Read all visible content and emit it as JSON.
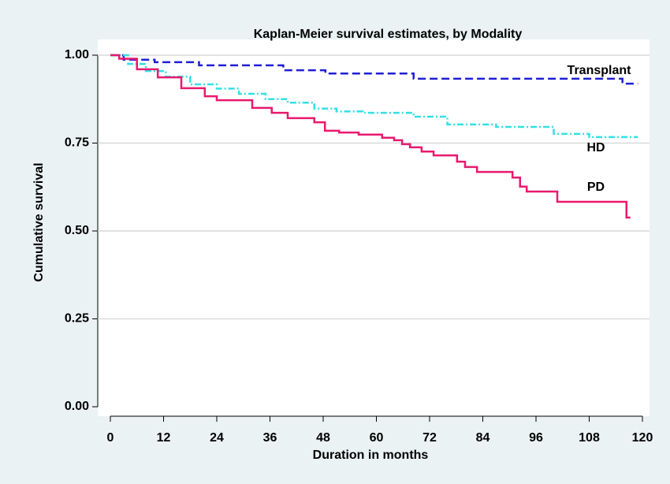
{
  "chart_data": {
    "type": "step",
    "title": "Kaplan-Meier survival estimates, by Modality",
    "x_label": "Duration in months",
    "y_label": "Cumulative survival",
    "xlim": [
      0,
      120
    ],
    "ylim": [
      0,
      1
    ],
    "xticks": [
      0,
      12,
      24,
      36,
      48,
      60,
      72,
      84,
      96,
      108,
      120
    ],
    "yticks": [
      {
        "value": 0,
        "label": "0.00"
      },
      {
        "value": 0.25,
        "label": "0.25"
      },
      {
        "value": 0.5,
        "label": "0.50"
      },
      {
        "value": 0.75,
        "label": "0.75"
      },
      {
        "value": 1,
        "label": "1.00"
      }
    ],
    "grid": true,
    "series": [
      {
        "name": "Transplant",
        "color": "#1f1fd6",
        "dash": "dashed",
        "x": [
          0,
          3,
          10,
          20,
          39,
          48.5,
          68.4,
          115.5,
          119
        ],
        "values": [
          1,
          0.987,
          0.98,
          0.971,
          0.957,
          0.948,
          0.933,
          0.919,
          0.919
        ]
      },
      {
        "name": "HD",
        "color": "#33e0e6",
        "dash": "dashdot",
        "x": [
          0,
          4,
          8,
          12.5,
          18,
          24,
          29,
          35,
          40,
          46,
          51,
          57,
          68.4,
          76,
          87,
          100,
          108,
          119
        ],
        "values": [
          1,
          0.975,
          0.955,
          0.939,
          0.917,
          0.905,
          0.89,
          0.875,
          0.865,
          0.848,
          0.84,
          0.836,
          0.825,
          0.803,
          0.796,
          0.776,
          0.767,
          0.767
        ]
      },
      {
        "name": "PD",
        "color": "#e8196e",
        "dash": "solid",
        "x": [
          0,
          2,
          6,
          10.7,
          16,
          21.3,
          24,
          32,
          36.4,
          40,
          46,
          48.4,
          51.6,
          56,
          61.3,
          64,
          65.8,
          67.6,
          70.2,
          72.9,
          78.2,
          80,
          82.7,
          90.7,
          92.4,
          93.9,
          100.8,
          116.4,
          117.3
        ],
        "values": [
          1,
          0.99,
          0.96,
          0.937,
          0.906,
          0.883,
          0.872,
          0.85,
          0.836,
          0.821,
          0.809,
          0.785,
          0.78,
          0.774,
          0.765,
          0.758,
          0.747,
          0.738,
          0.726,
          0.715,
          0.697,
          0.682,
          0.668,
          0.652,
          0.626,
          0.612,
          0.583,
          0.538,
          0.538
        ]
      }
    ]
  }
}
